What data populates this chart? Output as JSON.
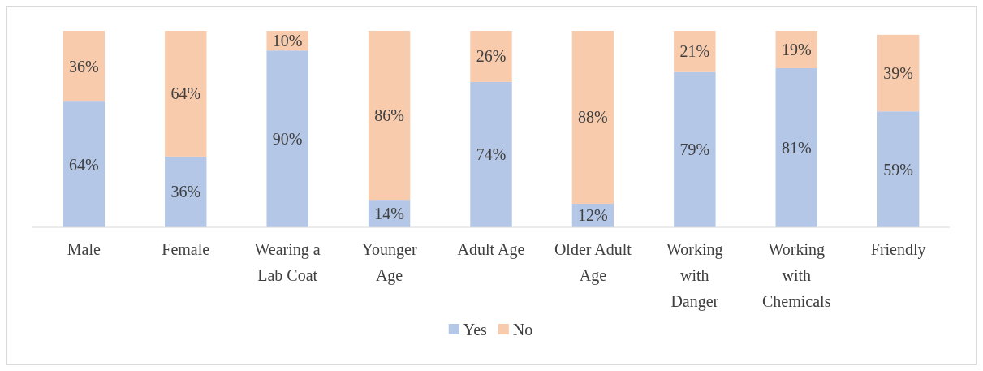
{
  "chart_data": {
    "type": "bar",
    "stacked": true,
    "categories": [
      "Male",
      "Female",
      "Wearing a Lab Coat",
      "Younger Age",
      "Adult Age",
      "Older Adult Age",
      "Working with Danger",
      "Working with Chemicals",
      "Friendly"
    ],
    "series": [
      {
        "name": "Yes",
        "color": "#b4c7e7",
        "values": [
          64,
          36,
          90,
          14,
          74,
          12,
          79,
          81,
          59
        ],
        "value_labels": [
          "64%",
          "36%",
          "90%",
          "14%",
          "74%",
          "12%",
          "79%",
          "81%",
          "59%"
        ]
      },
      {
        "name": "No",
        "color": "#f8cbad",
        "values": [
          36,
          64,
          10,
          86,
          26,
          88,
          21,
          19,
          39
        ],
        "value_labels": [
          "36%",
          "64%",
          "10%",
          "86%",
          "26%",
          "88%",
          "21%",
          "19%",
          "39%"
        ]
      }
    ],
    "legend": "bottom"
  }
}
